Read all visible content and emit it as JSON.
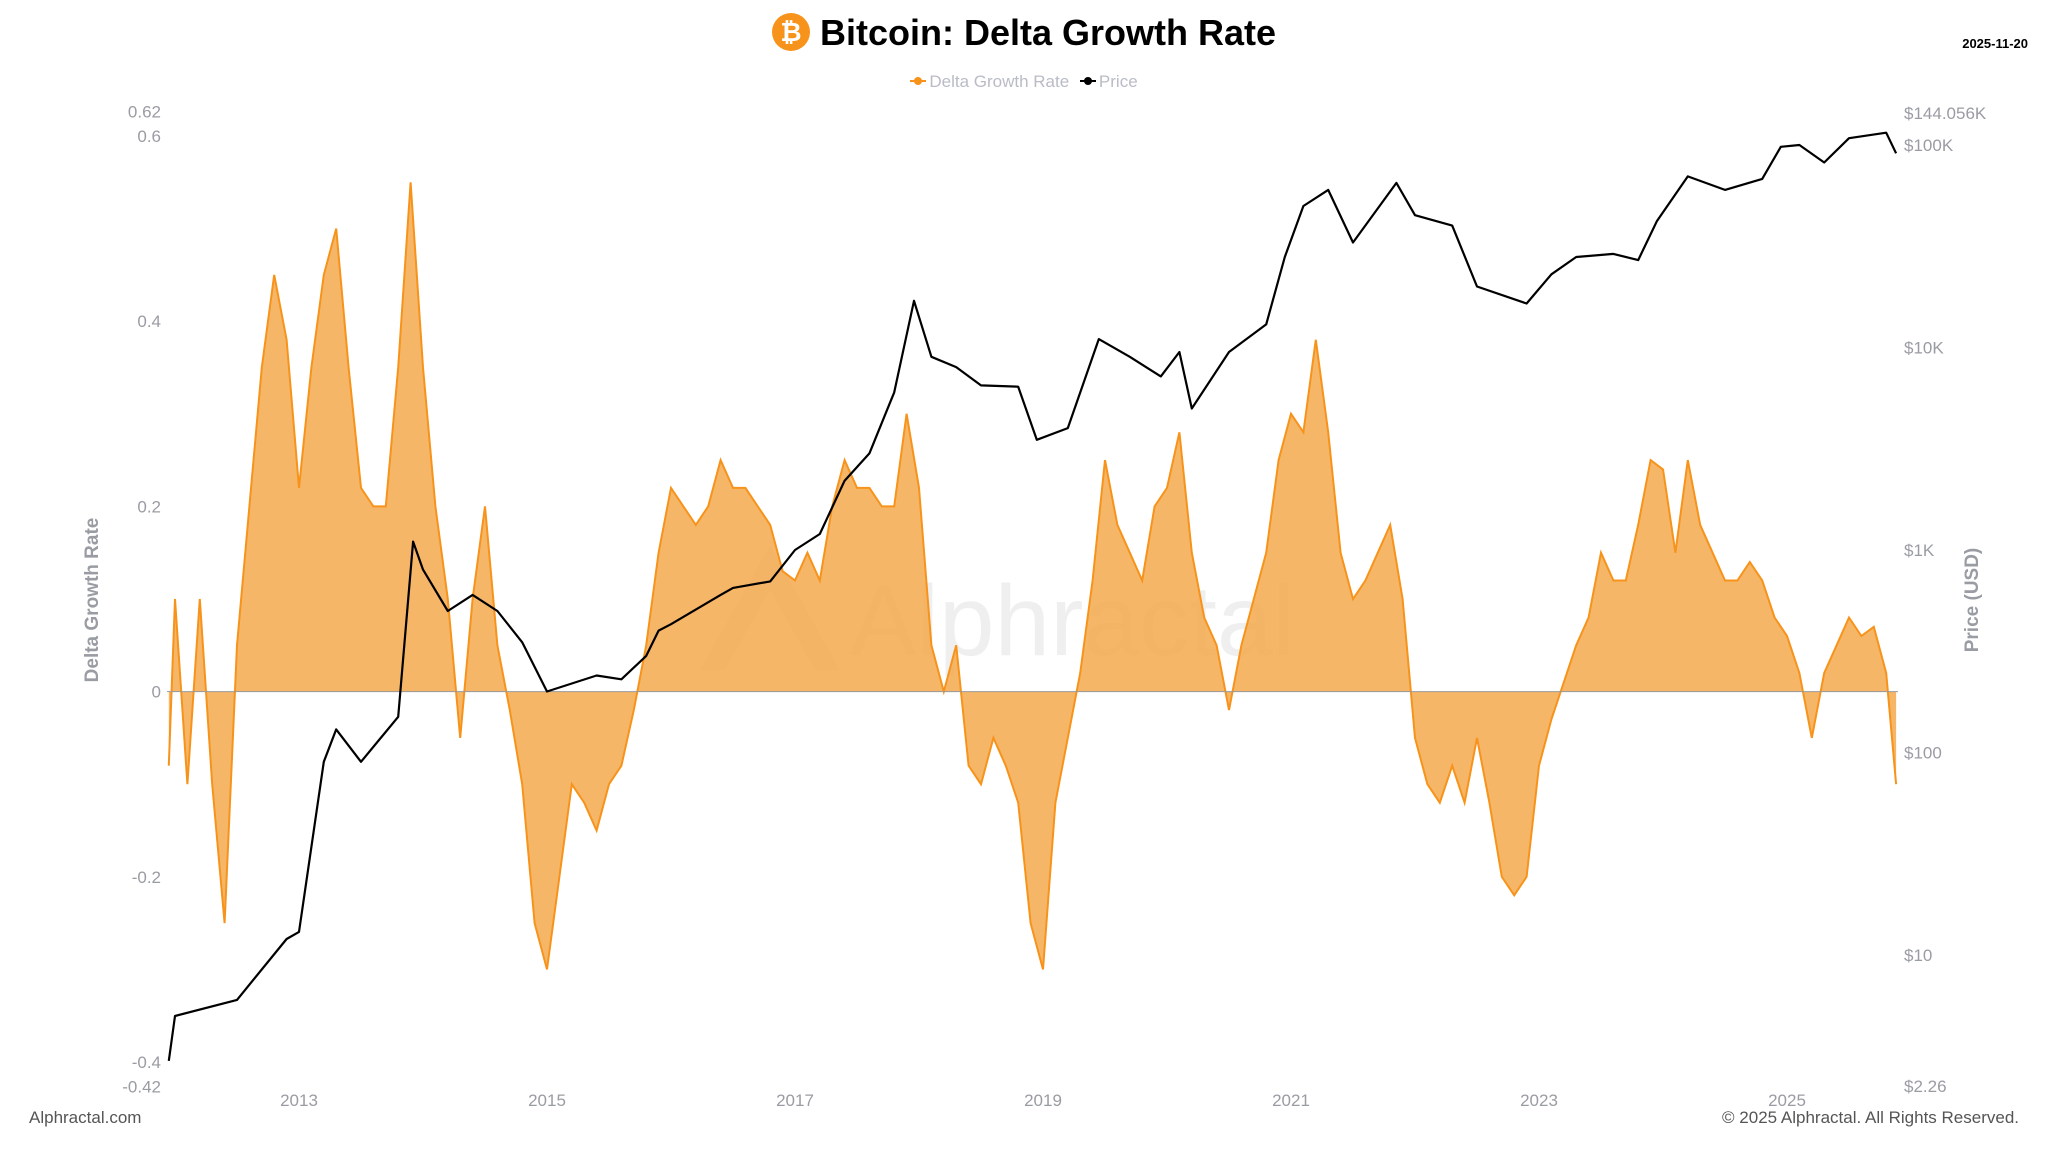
{
  "header": {
    "title": "Bitcoin: Delta Growth Rate",
    "icon": "bitcoin-icon",
    "date": "2025-11-20"
  },
  "legend": [
    {
      "label": "Delta Growth Rate",
      "color": "#F7931A"
    },
    {
      "label": "Price",
      "color": "#000000"
    }
  ],
  "footer": {
    "left": "Alphractal.com",
    "right": "© 2025 Alphractal. All Rights Reserved."
  },
  "watermark": "Alphractal",
  "chart_data": {
    "type": "area",
    "title": "Bitcoin: Delta Growth Rate",
    "ylabel": "Delta Growth Rate",
    "ylabel_right": "Price (USD)",
    "ylim": [
      -0.42,
      0.62
    ],
    "ylim_right": [
      2.26,
      144056
    ],
    "y_right_scale": "log",
    "xlim": [
      2011.93,
      2025.89
    ],
    "grid": false,
    "legend_position": "top-center",
    "x_ticks": [
      "2013",
      "2015",
      "2017",
      "2019",
      "2021",
      "2023",
      "2025"
    ],
    "y_ticks_left": [
      "0.62",
      "0.6",
      "0.4",
      "0.2",
      "0",
      "-0.2",
      "-0.4",
      "-0.42"
    ],
    "y_ticks_left_values": [
      0.62,
      0.6,
      0.4,
      0.2,
      0,
      -0.2,
      -0.4,
      -0.42
    ],
    "y_ticks_right": [
      "$144.056K",
      "$100K",
      "$10K",
      "$1K",
      "$100",
      "$10",
      "$2.26"
    ],
    "y_ticks_right_values": [
      144056,
      100000,
      10000,
      1000,
      100,
      10,
      2.26
    ],
    "series": [
      {
        "name": "Delta Growth Rate",
        "color": "#F7931A",
        "x": [
          2011.95,
          2012.0,
          2012.1,
          2012.2,
          2012.3,
          2012.4,
          2012.5,
          2012.6,
          2012.7,
          2012.8,
          2012.9,
          2013.0,
          2013.1,
          2013.2,
          2013.3,
          2013.4,
          2013.5,
          2013.6,
          2013.7,
          2013.8,
          2013.9,
          2014.0,
          2014.1,
          2014.2,
          2014.3,
          2014.4,
          2014.5,
          2014.6,
          2014.7,
          2014.8,
          2014.9,
          2015.0,
          2015.1,
          2015.2,
          2015.3,
          2015.4,
          2015.5,
          2015.6,
          2015.7,
          2015.8,
          2015.9,
          2016.0,
          2016.1,
          2016.2,
          2016.3,
          2016.4,
          2016.5,
          2016.6,
          2016.7,
          2016.8,
          2016.9,
          2017.0,
          2017.1,
          2017.2,
          2017.3,
          2017.4,
          2017.5,
          2017.6,
          2017.7,
          2017.8,
          2017.9,
          2018.0,
          2018.1,
          2018.2,
          2018.3,
          2018.4,
          2018.5,
          2018.6,
          2018.7,
          2018.8,
          2018.9,
          2019.0,
          2019.1,
          2019.2,
          2019.3,
          2019.4,
          2019.5,
          2019.6,
          2019.7,
          2019.8,
          2019.9,
          2020.0,
          2020.1,
          2020.2,
          2020.3,
          2020.4,
          2020.5,
          2020.6,
          2020.7,
          2020.8,
          2020.9,
          2021.0,
          2021.1,
          2021.2,
          2021.3,
          2021.4,
          2021.5,
          2021.6,
          2021.7,
          2021.8,
          2021.9,
          2022.0,
          2022.1,
          2022.2,
          2022.3,
          2022.4,
          2022.5,
          2022.6,
          2022.7,
          2022.8,
          2022.9,
          2023.0,
          2023.1,
          2023.2,
          2023.3,
          2023.4,
          2023.5,
          2023.6,
          2023.7,
          2023.8,
          2023.9,
          2024.0,
          2024.1,
          2024.2,
          2024.3,
          2024.4,
          2024.5,
          2024.6,
          2024.7,
          2024.8,
          2024.9,
          2025.0,
          2025.1,
          2025.2,
          2025.3,
          2025.4,
          2025.5,
          2025.6,
          2025.7,
          2025.8,
          2025.88
        ],
        "values": [
          -0.08,
          0.1,
          -0.1,
          0.1,
          -0.1,
          -0.25,
          0.05,
          0.2,
          0.35,
          0.45,
          0.38,
          0.22,
          0.35,
          0.45,
          0.5,
          0.35,
          0.22,
          0.2,
          0.2,
          0.35,
          0.55,
          0.35,
          0.2,
          0.1,
          -0.05,
          0.1,
          0.2,
          0.05,
          -0.02,
          -0.1,
          -0.25,
          -0.3,
          -0.2,
          -0.1,
          -0.12,
          -0.15,
          -0.1,
          -0.08,
          -0.02,
          0.05,
          0.15,
          0.22,
          0.2,
          0.18,
          0.2,
          0.25,
          0.22,
          0.22,
          0.2,
          0.18,
          0.13,
          0.12,
          0.15,
          0.12,
          0.2,
          0.25,
          0.22,
          0.22,
          0.2,
          0.2,
          0.3,
          0.22,
          0.05,
          0.0,
          0.05,
          -0.08,
          -0.1,
          -0.05,
          -0.08,
          -0.12,
          -0.25,
          -0.3,
          -0.12,
          -0.05,
          0.02,
          0.12,
          0.25,
          0.18,
          0.15,
          0.12,
          0.2,
          0.22,
          0.28,
          0.15,
          0.08,
          0.05,
          -0.02,
          0.05,
          0.1,
          0.15,
          0.25,
          0.3,
          0.28,
          0.38,
          0.28,
          0.15,
          0.1,
          0.12,
          0.15,
          0.18,
          0.1,
          -0.05,
          -0.1,
          -0.12,
          -0.08,
          -0.12,
          -0.05,
          -0.12,
          -0.2,
          -0.22,
          -0.2,
          -0.08,
          -0.03,
          0.01,
          0.05,
          0.08,
          0.15,
          0.12,
          0.12,
          0.18,
          0.25,
          0.24,
          0.15,
          0.25,
          0.18,
          0.15,
          0.12,
          0.12,
          0.14,
          0.12,
          0.08,
          0.06,
          0.02,
          -0.05,
          0.02,
          0.05,
          0.08,
          0.06,
          0.07,
          0.02,
          -0.1
        ]
      },
      {
        "name": "Price",
        "color": "#000000",
        "axis": "right",
        "x": [
          2011.95,
          2012.0,
          2012.5,
          2012.9,
          2013.0,
          2013.2,
          2013.3,
          2013.5,
          2013.8,
          2013.92,
          2014.0,
          2014.2,
          2014.4,
          2014.6,
          2014.8,
          2015.0,
          2015.4,
          2015.6,
          2015.8,
          2015.9,
          2016.0,
          2016.4,
          2016.5,
          2016.8,
          2017.0,
          2017.2,
          2017.4,
          2017.6,
          2017.8,
          2017.96,
          2018.1,
          2018.3,
          2018.5,
          2018.8,
          2018.95,
          2019.2,
          2019.45,
          2019.7,
          2019.95,
          2020.1,
          2020.2,
          2020.5,
          2020.8,
          2020.95,
          2021.1,
          2021.3,
          2021.5,
          2021.85,
          2022.0,
          2022.3,
          2022.5,
          2022.9,
          2023.1,
          2023.3,
          2023.6,
          2023.8,
          2023.95,
          2024.2,
          2024.5,
          2024.8,
          2024.95,
          2025.1,
          2025.3,
          2025.5,
          2025.8,
          2025.88
        ],
        "values": [
          3,
          5,
          6,
          12,
          13,
          90,
          130,
          90,
          150,
          1100,
          800,
          500,
          600,
          500,
          350,
          200,
          240,
          230,
          300,
          400,
          430,
          600,
          650,
          700,
          1000,
          1200,
          2200,
          3000,
          6000,
          17000,
          9000,
          8000,
          6500,
          6400,
          3500,
          4000,
          11000,
          9000,
          7200,
          9500,
          5000,
          9500,
          13000,
          28000,
          50000,
          60000,
          33000,
          65000,
          45000,
          40000,
          20000,
          16500,
          23000,
          28000,
          29000,
          27000,
          42000,
          70000,
          60000,
          68000,
          98000,
          100000,
          82000,
          108000,
          115000,
          91000
        ]
      }
    ]
  }
}
